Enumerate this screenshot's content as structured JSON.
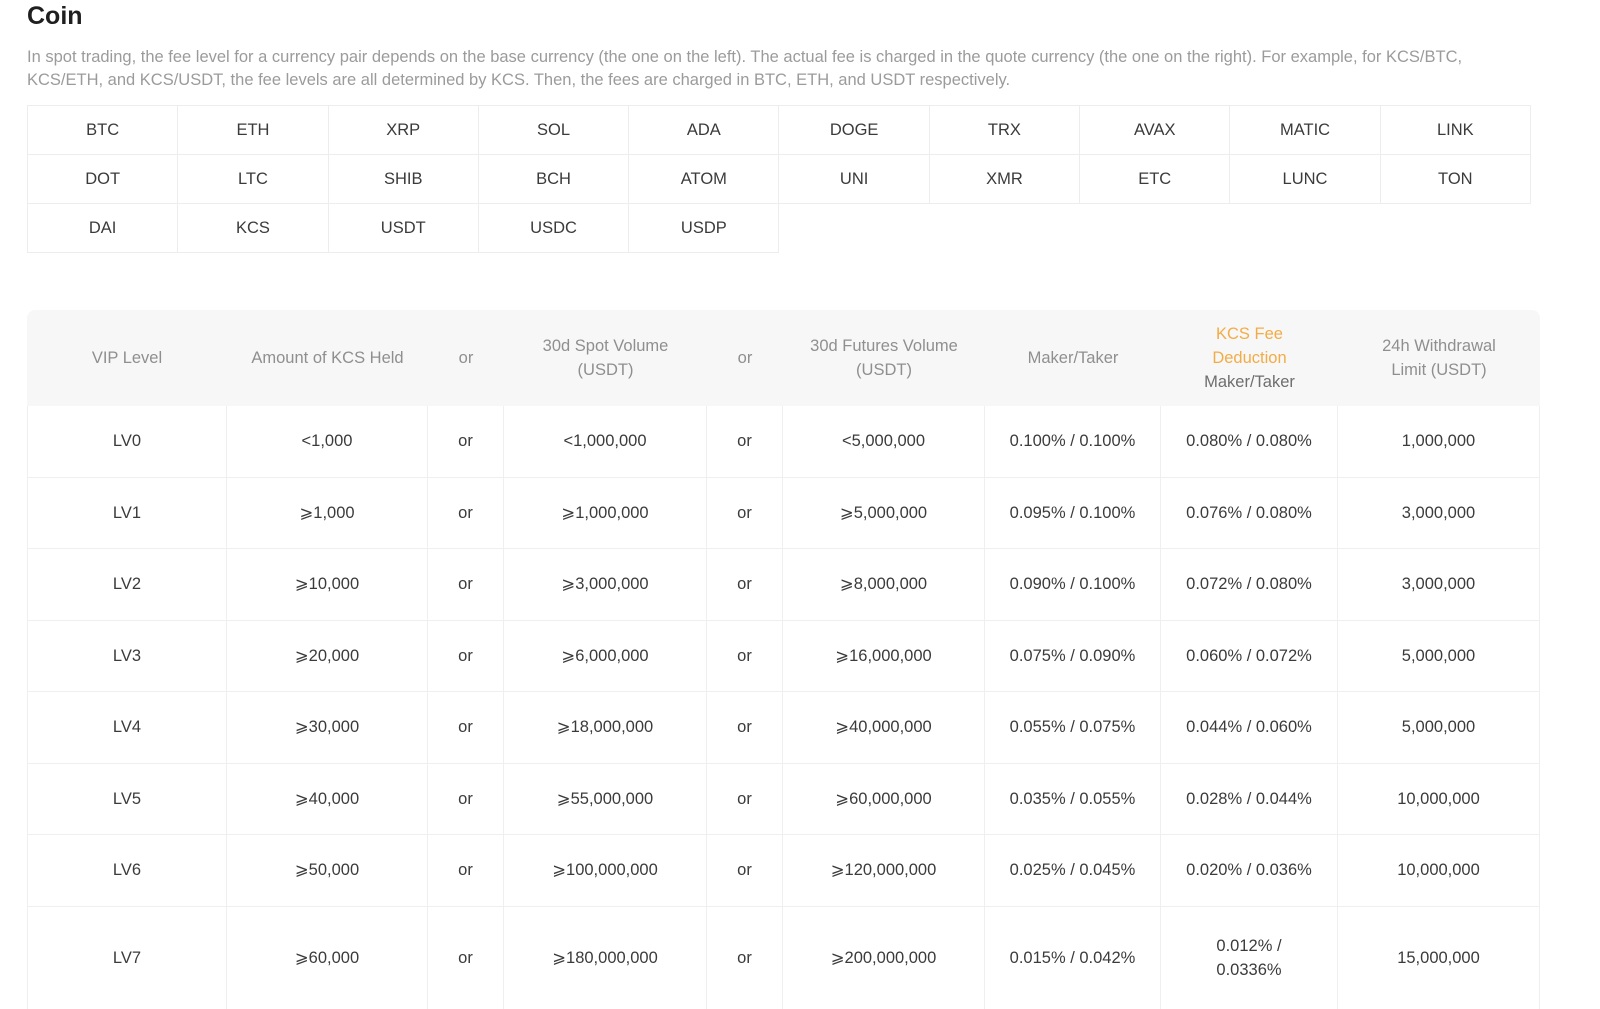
{
  "page": {
    "title": "Coin",
    "description": "In spot trading, the fee level for a currency pair depends on the base currency (the one on the left). The actual fee is charged in the quote currency (the one on the right). For example, for KCS/BTC, KCS/ETH, and KCS/USDT, the fee levels are all determined by KCS. Then, the fees are charged in BTC, ETH, and USDT respectively."
  },
  "coin_grid": {
    "rows": [
      [
        "BTC",
        "ETH",
        "XRP",
        "SOL",
        "ADA",
        "DOGE",
        "TRX",
        "AVAX",
        "MATIC",
        "LINK"
      ],
      [
        "DOT",
        "LTC",
        "SHIB",
        "BCH",
        "ATOM",
        "UNI",
        "XMR",
        "ETC",
        "LUNC",
        "TON"
      ],
      [
        "DAI",
        "KCS",
        "USDT",
        "USDC",
        "USDP"
      ]
    ]
  },
  "fee_table": {
    "highlight_color": "#f3ac45",
    "columns": [
      {
        "label": "VIP Level",
        "lines": [
          "VIP Level"
        ]
      },
      {
        "label": "Amount of KCS Held",
        "lines": [
          "Amount of KCS Held"
        ]
      },
      {
        "label": "or",
        "lines": [
          "or"
        ]
      },
      {
        "label": "30d Spot Volume (USDT)",
        "lines": [
          "30d Spot Volume",
          "(USDT)"
        ]
      },
      {
        "label": "or",
        "lines": [
          "or"
        ]
      },
      {
        "label": "30d Futures Volume (USDT)",
        "lines": [
          "30d Futures Volume",
          "(USDT)"
        ]
      },
      {
        "label": "Maker/Taker",
        "lines": [
          "Maker/Taker"
        ]
      },
      {
        "label": "KCS Fee Deduction Maker/Taker",
        "highlight_lines": [
          "KCS Fee",
          "Deduction"
        ],
        "sublabel": "Maker/Taker"
      },
      {
        "label": "24h Withdrawal Limit (USDT)",
        "lines": [
          "24h Withdrawal",
          "Limit (USDT)"
        ]
      }
    ],
    "rows": [
      [
        "LV0",
        "<1,000",
        "or",
        "<1,000,000",
        "or",
        "<5,000,000",
        "0.100% / 0.100%",
        "0.080% / 0.080%",
        "1,000,000"
      ],
      [
        "LV1",
        "⩾1,000",
        "or",
        "⩾1,000,000",
        "or",
        "⩾5,000,000",
        "0.095% / 0.100%",
        "0.076% / 0.080%",
        "3,000,000"
      ],
      [
        "LV2",
        "⩾10,000",
        "or",
        "⩾3,000,000",
        "or",
        "⩾8,000,000",
        "0.090% / 0.100%",
        "0.072% / 0.080%",
        "3,000,000"
      ],
      [
        "LV3",
        "⩾20,000",
        "or",
        "⩾6,000,000",
        "or",
        "⩾16,000,000",
        "0.075% / 0.090%",
        "0.060% / 0.072%",
        "5,000,000"
      ],
      [
        "LV4",
        "⩾30,000",
        "or",
        "⩾18,000,000",
        "or",
        "⩾40,000,000",
        "0.055% / 0.075%",
        "0.044% / 0.060%",
        "5,000,000"
      ],
      [
        "LV5",
        "⩾40,000",
        "or",
        "⩾55,000,000",
        "or",
        "⩾60,000,000",
        "0.035% / 0.055%",
        "0.028% / 0.044%",
        "10,000,000"
      ],
      [
        "LV6",
        "⩾50,000",
        "or",
        "⩾100,000,000",
        "or",
        "⩾120,000,000",
        "0.025% / 0.045%",
        "0.020% / 0.036%",
        "10,000,000"
      ],
      [
        "LV7",
        "⩾60,000",
        "or",
        "⩾180,000,000",
        "or",
        "⩾200,000,000",
        "0.015% / 0.042%",
        "0.012% / 0.0336%",
        "15,000,000"
      ]
    ]
  }
}
